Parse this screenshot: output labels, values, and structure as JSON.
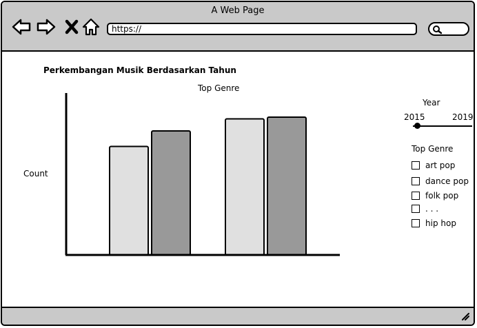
{
  "browser": {
    "title": "A Web Page",
    "url": "https://",
    "nav_icons": [
      "back-arrow-icon",
      "forward-arrow-icon",
      "close-x-icon",
      "home-icon"
    ],
    "search_icon": "search-icon"
  },
  "page": {
    "heading": "Perkembangan Musik Berdasarkan Tahun"
  },
  "chart_data": {
    "type": "bar",
    "title": "Top Genre",
    "ylabel": "Count",
    "xlabel": "",
    "categories": [
      "",
      ""
    ],
    "series": [
      {
        "values": [
          0.63,
          0.79
        ],
        "color": "#e0e0e0"
      },
      {
        "values": [
          0.72,
          0.8
        ],
        "color": "#999999"
      }
    ],
    "ylim": [
      0,
      1
    ]
  },
  "filters": {
    "year_label": "Year",
    "slider_min": "2015",
    "slider_max": "2019",
    "slider_value": 0.1,
    "genre_title": "Top Genre",
    "genres": [
      "art pop",
      "dance pop",
      "folk pop",
      ". . .",
      "hip hop"
    ]
  },
  "statusbar": {
    "resize_icon": "resize-grip-icon"
  }
}
